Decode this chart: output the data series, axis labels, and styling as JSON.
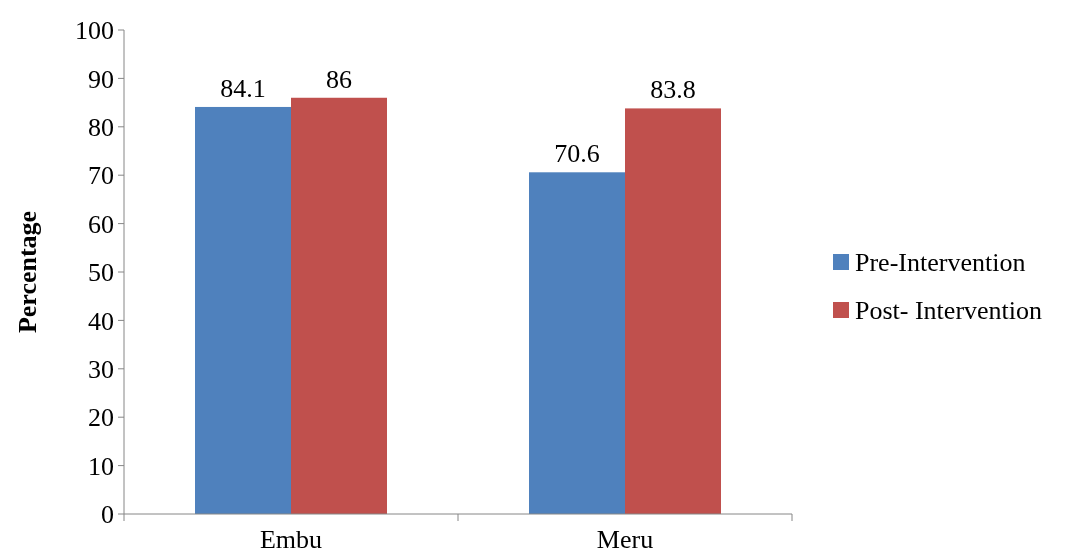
{
  "chart_data": {
    "type": "bar",
    "ylabel": "Percentage",
    "categories": [
      "Embu",
      "Meru"
    ],
    "series": [
      {
        "name": "Pre-Intervention",
        "color": "#4f81bd",
        "values": [
          84.1,
          70.6
        ]
      },
      {
        "name": "Post- Intervention",
        "color": "#c0504d",
        "values": [
          86,
          83.8
        ]
      }
    ],
    "ylim": [
      0,
      100
    ],
    "yticks": [
      0,
      10,
      20,
      30,
      40,
      50,
      60,
      70,
      80,
      90,
      100
    ],
    "data_labels": true,
    "legend": "right",
    "grid": false
  }
}
